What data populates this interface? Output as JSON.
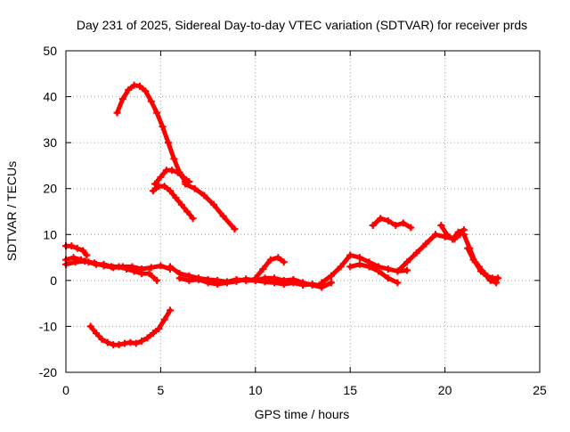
{
  "chart_data": {
    "type": "scatter",
    "title": "Day 231 of 2025, Sidereal Day-to-day VTEC variation (SDTVAR) for receiver prds",
    "xlabel": "GPS time / hours",
    "ylabel": "SDTVAR / TECUs",
    "xlim": [
      0,
      25
    ],
    "ylim": [
      -20,
      50
    ],
    "xticks": [
      0,
      5,
      10,
      15,
      20,
      25
    ],
    "yticks": [
      -20,
      -10,
      0,
      10,
      20,
      30,
      40,
      50
    ],
    "grid": true,
    "legend": "none",
    "marker": "plus",
    "series_color": "#ff0000",
    "series": [
      {
        "name": "arc-high-peak",
        "x": [
          2.7,
          3.0,
          3.3,
          3.6,
          3.9,
          4.2,
          4.5,
          4.8,
          5.1,
          5.4,
          5.7,
          6.0,
          6.3
        ],
        "y": [
          36.5,
          39.5,
          41.5,
          42.5,
          42.3,
          41.2,
          39.0,
          36.5,
          33.5,
          30.0,
          26.5,
          23.5,
          21.5
        ]
      },
      {
        "name": "arc-high-tail",
        "x": [
          6.3,
          6.8,
          7.3,
          7.8,
          8.3,
          8.9
        ],
        "y": [
          21.0,
          20.0,
          18.5,
          16.5,
          14.0,
          11.2
        ]
      },
      {
        "name": "arc-mid-upper",
        "x": [
          4.7,
          5.0,
          5.3,
          5.6,
          5.9,
          6.2,
          6.5
        ],
        "y": [
          21.0,
          22.5,
          24.0,
          24.0,
          23.5,
          22.5,
          21.5
        ]
      },
      {
        "name": "arc-mid-lower",
        "x": [
          4.6,
          4.9,
          5.2,
          5.5,
          5.8,
          6.1,
          6.4,
          6.7
        ],
        "y": [
          19.5,
          20.5,
          20.5,
          19.5,
          18.0,
          16.5,
          15.0,
          13.5
        ]
      },
      {
        "name": "arc-negative",
        "x": [
          1.3,
          1.6,
          1.9,
          2.2,
          2.5,
          2.8,
          3.1,
          3.4,
          3.7,
          4.0,
          4.3,
          4.6,
          4.9,
          5.2,
          5.5
        ],
        "y": [
          -10.0,
          -11.5,
          -12.8,
          -13.5,
          -14.0,
          -14.0,
          -13.7,
          -13.5,
          -13.7,
          -13.2,
          -12.5,
          -11.5,
          -10.5,
          -8.5,
          -6.5
        ]
      },
      {
        "name": "arc-start-a",
        "x": [
          0.0,
          0.3,
          0.6,
          0.9,
          1.1
        ],
        "y": [
          7.5,
          7.5,
          7.0,
          6.5,
          5.5
        ]
      },
      {
        "name": "arc-start-b",
        "x": [
          0.0,
          0.4,
          0.8,
          1.2,
          1.6,
          2.0,
          2.4,
          2.8,
          3.2,
          3.6,
          4.0,
          4.4,
          4.8
        ],
        "y": [
          4.5,
          5.0,
          4.5,
          4.0,
          3.5,
          3.5,
          3.0,
          3.0,
          2.5,
          2.0,
          1.5,
          1.5,
          0.0
        ]
      },
      {
        "name": "arc-start-c",
        "x": [
          0.0,
          0.5,
          1.0,
          1.5,
          2.0,
          2.5,
          3.0,
          3.5,
          4.0,
          4.5,
          5.0,
          5.5
        ],
        "y": [
          3.5,
          4.0,
          4.2,
          3.8,
          3.2,
          2.8,
          3.0,
          3.0,
          2.5,
          2.8,
          3.2,
          2.5
        ]
      },
      {
        "name": "arc-baseline-1",
        "x": [
          5.5,
          6.0,
          6.5,
          7.0,
          7.5,
          8.0,
          8.5,
          9.0,
          9.5,
          10.0,
          10.5,
          11.0,
          11.5,
          12.0,
          12.5,
          13.0,
          13.5,
          14.0
        ],
        "y": [
          3.0,
          1.5,
          1.0,
          0.5,
          0.2,
          0.0,
          -0.3,
          0.2,
          0.0,
          0.0,
          0.5,
          0.5,
          0.0,
          0.2,
          -0.5,
          -1.0,
          -1.5,
          -0.5
        ]
      },
      {
        "name": "arc-baseline-2",
        "x": [
          6.0,
          6.5,
          7.0,
          7.5,
          8.0,
          8.5,
          9.0,
          9.5,
          10.0,
          10.5,
          11.0,
          11.5,
          12.0,
          12.5,
          13.0,
          13.5
        ],
        "y": [
          0.5,
          0.0,
          0.2,
          -0.5,
          -0.8,
          -0.5,
          -0.2,
          0.3,
          0.0,
          -0.3,
          -0.5,
          -0.8,
          -0.5,
          -1.0,
          -0.8,
          -1.2
        ]
      },
      {
        "name": "arc-bump-10",
        "x": [
          10.0,
          10.4,
          10.8,
          11.2,
          11.5
        ],
        "y": [
          0.5,
          2.5,
          4.5,
          5.0,
          4.0
        ]
      },
      {
        "name": "arc-rise-14",
        "x": [
          13.5,
          14.0,
          14.5,
          15.0,
          15.5,
          16.0,
          16.5,
          17.0,
          17.5,
          18.0
        ],
        "y": [
          -0.5,
          1.0,
          3.0,
          5.5,
          5.0,
          4.0,
          3.0,
          2.5,
          2.0,
          2.2
        ]
      },
      {
        "name": "arc-dip-16",
        "x": [
          15.0,
          15.5,
          16.0,
          16.5,
          17.0,
          17.5
        ],
        "y": [
          3.0,
          3.5,
          3.0,
          2.0,
          0.5,
          -0.5
        ]
      },
      {
        "name": "arc-upper-16",
        "x": [
          16.2,
          16.6,
          17.0,
          17.4,
          17.8,
          18.2
        ],
        "y": [
          12.0,
          13.5,
          13.0,
          12.0,
          12.5,
          11.5
        ]
      },
      {
        "name": "arc-rise-18",
        "x": [
          17.5,
          18.0,
          18.5,
          19.0,
          19.5,
          20.0,
          20.5,
          20.8
        ],
        "y": [
          2.0,
          4.0,
          6.0,
          8.0,
          10.0,
          9.5,
          9.0,
          10.0
        ]
      },
      {
        "name": "arc-peak-20",
        "x": [
          19.8,
          20.1,
          20.4,
          20.7,
          21.0
        ],
        "y": [
          12.0,
          10.0,
          9.0,
          10.5,
          11.0
        ]
      },
      {
        "name": "arc-late-21",
        "x": [
          21.0,
          21.3,
          21.6,
          21.9,
          22.2,
          22.5,
          22.8
        ],
        "y": [
          10.0,
          7.0,
          4.0,
          2.0,
          1.0,
          0.5,
          0.5
        ]
      },
      {
        "name": "arc-late-21b",
        "x": [
          21.2,
          21.5,
          21.8,
          22.1,
          22.4,
          22.7
        ],
        "y": [
          7.0,
          4.5,
          3.0,
          1.5,
          0.0,
          -0.5
        ]
      }
    ]
  }
}
